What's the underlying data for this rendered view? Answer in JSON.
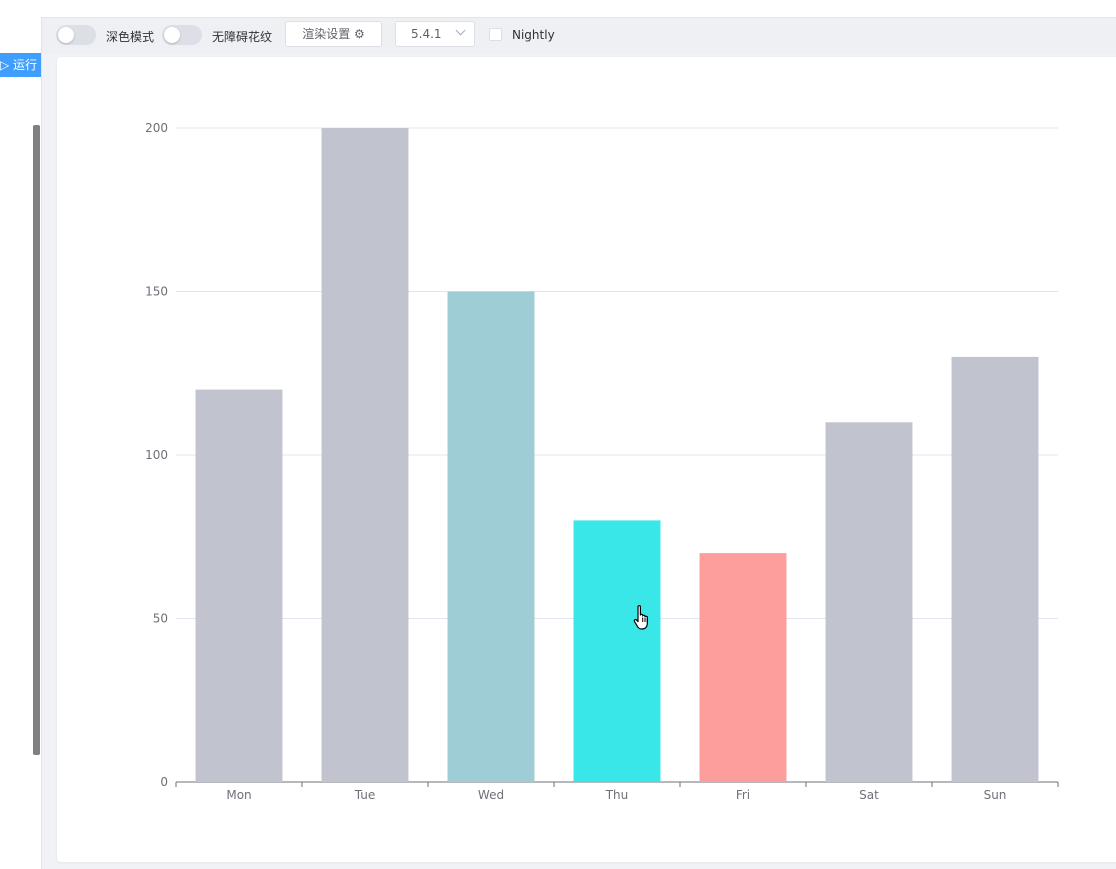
{
  "toolbar": {
    "dark_mode_label": "深色模式",
    "decal_label": "无障碍花纹",
    "render_settings_label": "渲染设置",
    "version_value": "5.4.1",
    "nightly_label": "Nightly"
  },
  "editor": {
    "run_label": "运行"
  },
  "colors": {
    "bar_default": "#c1c3ce",
    "bar_wed": "#9fcdd6",
    "bar_thu": "#3ae7e8",
    "bar_fri": "#fe9e9c",
    "primary": "#409eff"
  },
  "chart_data": {
    "type": "bar",
    "categories": [
      "Mon",
      "Tue",
      "Wed",
      "Thu",
      "Fri",
      "Sat",
      "Sun"
    ],
    "values": [
      120,
      200,
      150,
      80,
      70,
      110,
      130
    ],
    "bar_colors": [
      "#c1c3ce",
      "#c1c3ce",
      "#9fcdd6",
      "#3ae7e8",
      "#fe9e9c",
      "#c1c3ce",
      "#c1c3ce"
    ],
    "ylim": [
      0,
      200
    ],
    "yticks": [
      0,
      50,
      100,
      150,
      200
    ],
    "grid": true,
    "legend": "none"
  }
}
